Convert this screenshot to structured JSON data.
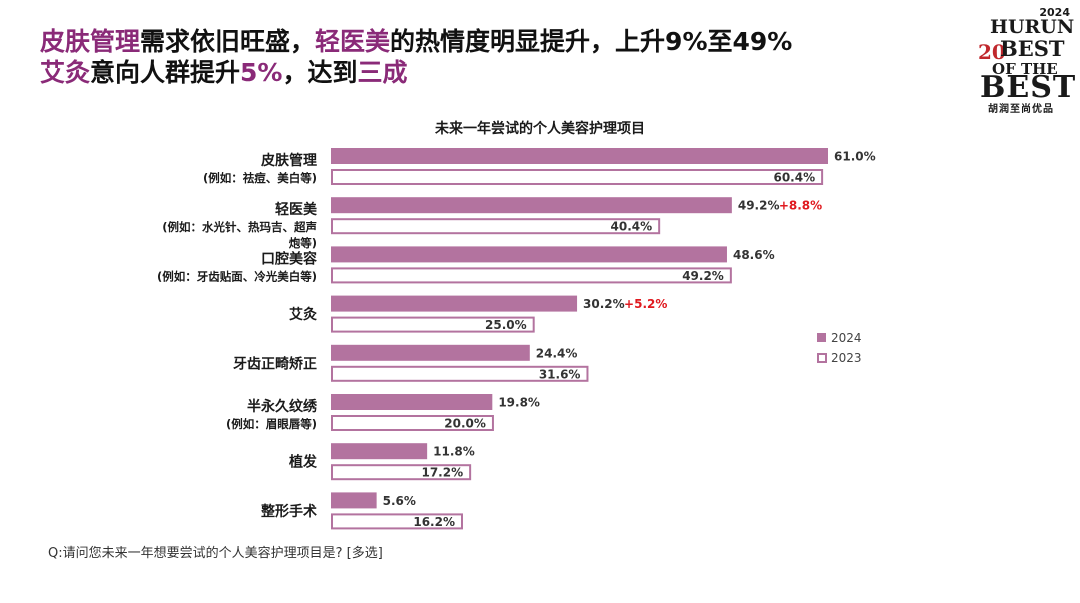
{
  "headline": {
    "line1": [
      {
        "text": "皮肤管理",
        "hl": true
      },
      {
        "text": "需求依旧旺盛，",
        "hl": false
      },
      {
        "text": "轻医美",
        "hl": true
      },
      {
        "text": "的热情度明显提升，上升9%至49%",
        "hl": false
      }
    ],
    "line2": [
      {
        "text": "艾灸",
        "hl": true
      },
      {
        "text": "意向人群提升",
        "hl": false
      },
      {
        "text": "5%",
        "hl": true
      },
      {
        "text": "，达到",
        "hl": false
      },
      {
        "text": "三成",
        "hl": true
      }
    ]
  },
  "logo": {
    "year": "2024",
    "brand": "HURUN",
    "number": "20",
    "best": "BEST",
    "of_the": "OF THE",
    "best2": "BEST",
    "cn": "胡润至尚优品"
  },
  "footnote": "Q:请问您未来一年想要尝试的个人美容护理项目是? [多选]",
  "chart_data": {
    "type": "bar",
    "orientation": "horizontal",
    "title": "未来一年尝试的个人美容护理项目",
    "categories": [
      {
        "name": "皮肤管理",
        "sub": [
          "(例如：祛痘、美白等)"
        ]
      },
      {
        "name": "轻医美",
        "sub": [
          "(例如：水光针、热玛吉、超声",
          "炮等)"
        ]
      },
      {
        "name": "口腔美容",
        "sub": [
          "(例如：牙齿贴面、冷光美白等)"
        ]
      },
      {
        "name": "艾灸",
        "sub": []
      },
      {
        "name": "牙齿正畸矫正",
        "sub": []
      },
      {
        "name": "半永久纹绣",
        "sub": [
          "(例如：眉眼唇等)"
        ]
      },
      {
        "name": "植发",
        "sub": []
      },
      {
        "name": "整形手术",
        "sub": []
      }
    ],
    "series": [
      {
        "name": "2024",
        "values": [
          61.0,
          49.2,
          48.6,
          30.2,
          24.4,
          19.8,
          11.8,
          5.6
        ],
        "labels": [
          "61.0%",
          "49.2%",
          "48.6%",
          "30.2%",
          "24.4%",
          "19.8%",
          "11.8%",
          "5.6%"
        ]
      },
      {
        "name": "2023",
        "values": [
          60.4,
          40.4,
          49.2,
          25.0,
          31.6,
          20.0,
          17.2,
          16.2
        ],
        "labels": [
          "60.4%",
          "40.4%",
          "49.2%",
          "25.0%",
          "31.6%",
          "20.0%",
          "17.2%",
          "16.2%"
        ]
      }
    ],
    "annotations": [
      {
        "category_index": 1,
        "text": "+8.8%"
      },
      {
        "category_index": 3,
        "text": "+5.2%"
      }
    ],
    "xlim": [
      0,
      70
    ],
    "grid": false,
    "legend_position": "right",
    "colors": {
      "fill_2024": "#b3739f",
      "outline_2023": "#b3739f",
      "delta": "#e0191f"
    }
  }
}
